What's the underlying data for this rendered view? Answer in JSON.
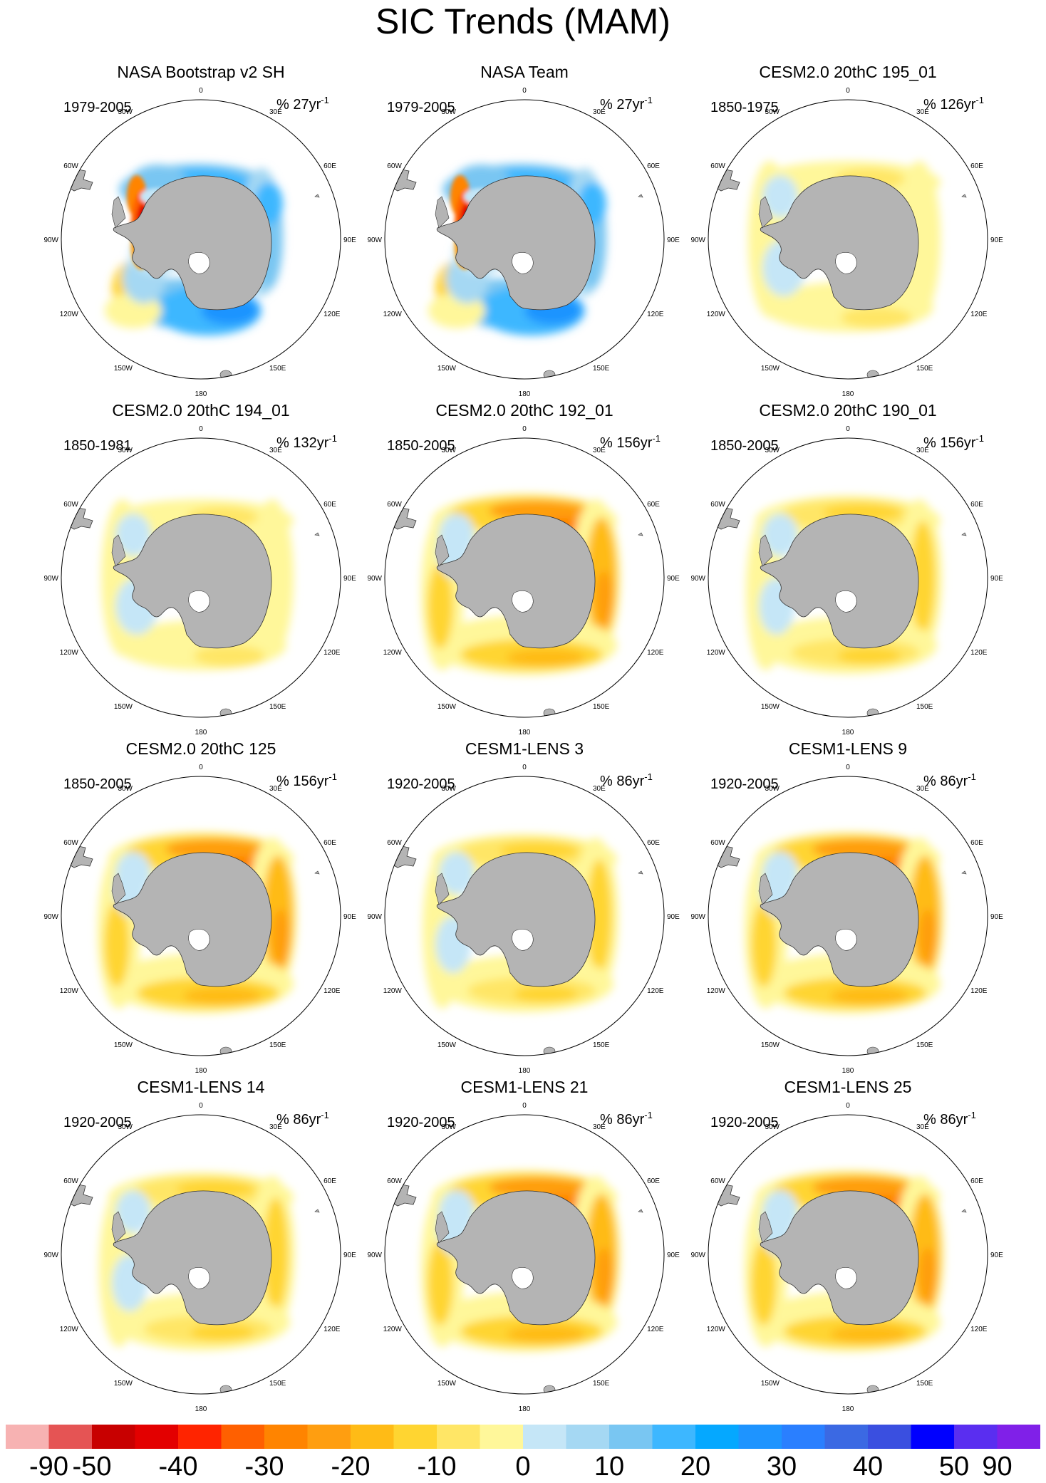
{
  "figure": {
    "title": "SIC Trends (MAM)"
  },
  "map_labels": {
    "lon": [
      "0",
      "30E",
      "60E",
      "90E",
      "120E",
      "150E",
      "180",
      "150W",
      "120W",
      "90W",
      "60W",
      "30W"
    ]
  },
  "panels": [
    {
      "title": "NASA Bootstrap v2 SH",
      "period": "1979-2005",
      "units_prefix": "% ",
      "units_value": "27yr",
      "units_exp": "-1",
      "pattern": "obs"
    },
    {
      "title": "NASA Team",
      "period": "1979-2005",
      "units_prefix": "% ",
      "units_value": "27yr",
      "units_exp": "-1",
      "pattern": "obs2"
    },
    {
      "title": "CESM2.0 20thC 195_01",
      "period": "1850-1975",
      "units_prefix": "% ",
      "units_value": "126yr",
      "units_exp": "-1",
      "pattern": "weak"
    },
    {
      "title": "CESM2.0 20thC 194_01",
      "period": "1850-1981",
      "units_prefix": "% ",
      "units_value": "132yr",
      "units_exp": "-1",
      "pattern": "weak"
    },
    {
      "title": "CESM2.0 20thC 192_01",
      "period": "1850-2005",
      "units_prefix": "% ",
      "units_value": "156yr",
      "units_exp": "-1",
      "pattern": "strong"
    },
    {
      "title": "CESM2.0 20thC 190_01",
      "period": "1850-2005",
      "units_prefix": "% ",
      "units_value": "156yr",
      "units_exp": "-1",
      "pattern": "mid"
    },
    {
      "title": "CESM2.0 20thC 125",
      "period": "1850-2005",
      "units_prefix": "% ",
      "units_value": "156yr",
      "units_exp": "-1",
      "pattern": "strong"
    },
    {
      "title": "CESM1-LENS 3",
      "period": "1920-2005",
      "units_prefix": "% ",
      "units_value": "86yr",
      "units_exp": "-1",
      "pattern": "mid"
    },
    {
      "title": "CESM1-LENS 9",
      "period": "1920-2005",
      "units_prefix": "% ",
      "units_value": "86yr",
      "units_exp": "-1",
      "pattern": "strong"
    },
    {
      "title": "CESM1-LENS 14",
      "period": "1920-2005",
      "units_prefix": "% ",
      "units_value": "86yr",
      "units_exp": "-1",
      "pattern": "mid"
    },
    {
      "title": "CESM1-LENS 21",
      "period": "1920-2005",
      "units_prefix": "% ",
      "units_value": "86yr",
      "units_exp": "-1",
      "pattern": "strong"
    },
    {
      "title": "CESM1-LENS 25",
      "period": "1920-2005",
      "units_prefix": "% ",
      "units_value": "86yr",
      "units_exp": "-1",
      "pattern": "strong"
    }
  ],
  "colorbar": {
    "colors": [
      "#f7b2b2",
      "#e55454",
      "#c80000",
      "#e30000",
      "#ff2400",
      "#ff6000",
      "#ff8400",
      "#ff9e10",
      "#ffbb16",
      "#ffd531",
      "#ffe666",
      "#fff79a",
      "#c5e6f7",
      "#a5d8f3",
      "#79c6f2",
      "#3db7ff",
      "#05a8ff",
      "#1e94ff",
      "#2a7fff",
      "#3b69e3",
      "#3a4fe0",
      "#0000ff",
      "#5a2ef0",
      "#8020e8"
    ],
    "tick_labels": [
      "-90",
      "-50",
      "-40",
      "-30",
      "-20",
      "-10",
      "0",
      "10",
      "20",
      "30",
      "40",
      "50",
      "90"
    ]
  }
}
